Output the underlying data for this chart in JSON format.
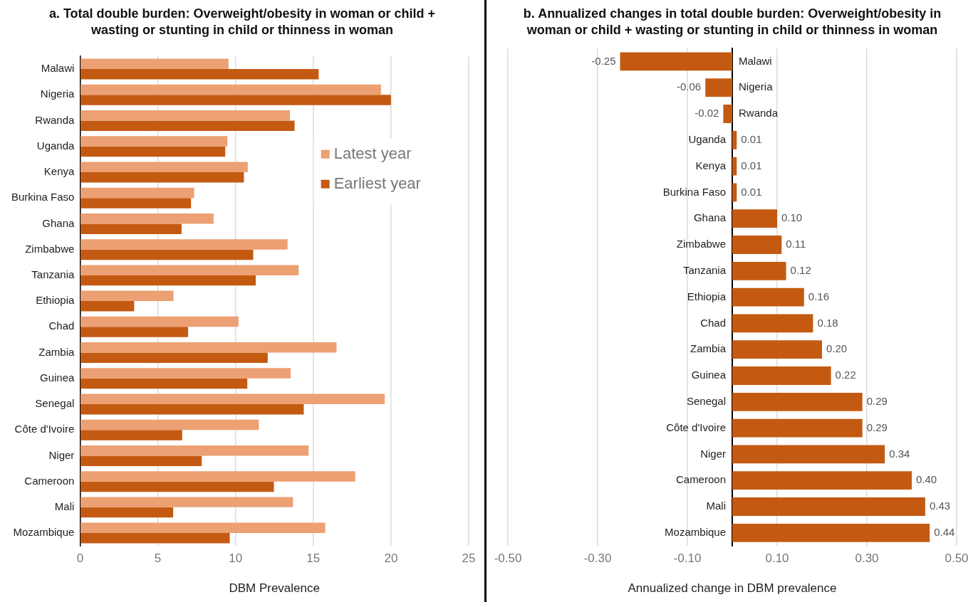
{
  "chart_data": [
    {
      "type": "bar",
      "orientation": "horizontal",
      "title": "a. Total double burden: Overweight/obesity in woman or child + wasting or stunting in child or thinness in woman",
      "xlabel": "DBM Prevalence",
      "categories": [
        "Malawi",
        "Nigeria",
        "Rwanda",
        "Uganda",
        "Kenya",
        "Burkina Faso",
        "Ghana",
        "Zimbabwe",
        "Tanzania",
        "Ethiopia",
        "Chad",
        "Zambia",
        "Guinea",
        "Senegal",
        "Côte d'Ivoire",
        "Niger",
        "Cameroon",
        "Mali",
        "Mozambique"
      ],
      "series": [
        {
          "name": "Latest year",
          "color": "#eca073",
          "values": [
            9.55,
            19.36,
            13.5,
            9.48,
            10.79,
            7.34,
            8.59,
            13.35,
            14.06,
            6.01,
            10.19,
            16.5,
            13.55,
            19.6,
            11.5,
            14.7,
            17.7,
            13.7,
            15.77
          ]
        },
        {
          "name": "Earliest year",
          "color": "#c45a12",
          "values": [
            15.35,
            20.0,
            13.8,
            9.34,
            10.54,
            7.14,
            6.53,
            11.14,
            11.3,
            3.48,
            6.95,
            12.07,
            10.76,
            14.39,
            6.57,
            7.83,
            12.47,
            5.99,
            9.63
          ]
        }
      ],
      "xlim": [
        0,
        25
      ],
      "xticks": [
        0,
        5,
        10,
        15,
        20,
        25
      ],
      "grid": "x",
      "legend": "right"
    },
    {
      "type": "bar",
      "orientation": "horizontal",
      "title": "b. Annualized changes in total double burden: Overweight/obesity in woman or child + wasting or stunting in child or thinness in woman",
      "xlabel": "Annualized change in DBM prevalence",
      "categories": [
        "Malawi",
        "Nigeria",
        "Rwanda",
        "Uganda",
        "Kenya",
        "Burkina Faso",
        "Ghana",
        "Zimbabwe",
        "Tanzania",
        "Ethiopia",
        "Chad",
        "Zambia",
        "Guinea",
        "Senegal",
        "Côte d'Ivoire",
        "Niger",
        "Cameroon",
        "Mali",
        "Mozambique"
      ],
      "values": [
        -0.25,
        -0.06,
        -0.02,
        0.01,
        0.01,
        0.01,
        0.1,
        0.11,
        0.12,
        0.16,
        0.18,
        0.2,
        0.22,
        0.29,
        0.29,
        0.34,
        0.4,
        0.43,
        0.44
      ],
      "value_labels": [
        "-0.25",
        "-0.06",
        "-0.02",
        "0.01",
        "0.01",
        "0.01",
        "0.10",
        "0.11",
        "0.12",
        "0.16",
        "0.18",
        "0.20",
        "0.22",
        "0.29",
        "0.29",
        "0.34",
        "0.40",
        "0.43",
        "0.44"
      ],
      "color": "#c45a12",
      "xlim": [
        -0.5,
        0.5
      ],
      "xticks": [
        {
          "value": -0.5,
          "label": "-0.50"
        },
        {
          "value": -0.3,
          "label": "-0.30"
        },
        {
          "value": -0.1,
          "label": "-0.10"
        },
        {
          "value": 0.1,
          "label": "0.10"
        },
        {
          "value": 0.3,
          "label": "0.30"
        },
        {
          "value": 0.5,
          "label": "0.50"
        }
      ],
      "grid": "x"
    }
  ]
}
